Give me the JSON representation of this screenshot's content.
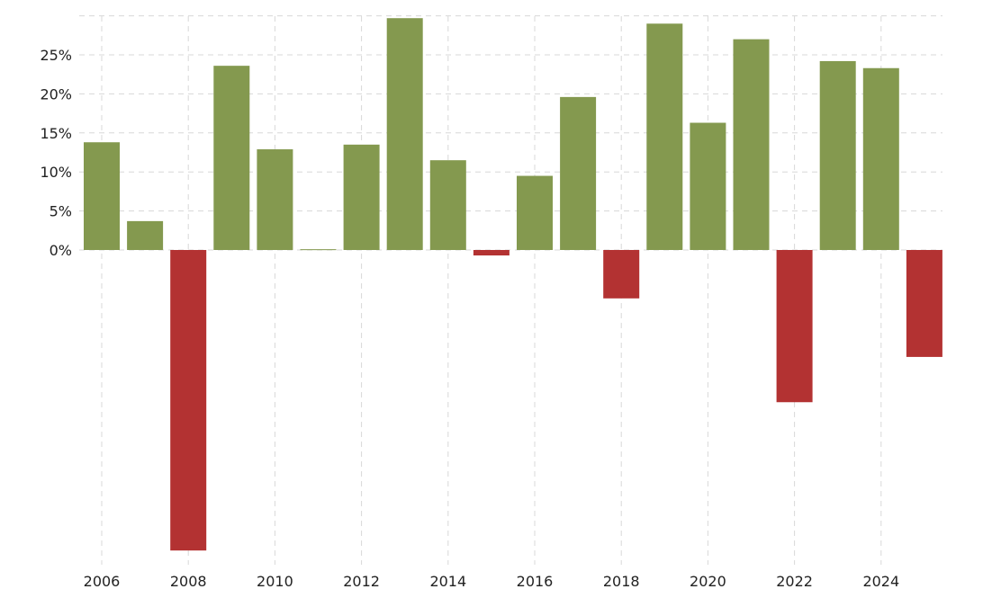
{
  "chart_data": {
    "type": "bar",
    "title": "",
    "xlabel": "",
    "ylabel": "",
    "categories": [
      "2006",
      "2007",
      "2008",
      "2009",
      "2010",
      "2011",
      "2012",
      "2013",
      "2014",
      "2015",
      "2016",
      "2017",
      "2018",
      "2019",
      "2020",
      "2021",
      "2022",
      "2023",
      "2024",
      "2025"
    ],
    "values": [
      13.8,
      3.7,
      -38.5,
      23.6,
      12.9,
      0.1,
      13.5,
      29.7,
      11.5,
      -0.7,
      9.5,
      19.6,
      -6.2,
      29.0,
      16.3,
      27.0,
      -19.5,
      24.2,
      23.3,
      -13.7
    ],
    "ylim": [
      -40,
      30
    ],
    "y_ticks": [
      "0%",
      "5%",
      "10%",
      "15%",
      "20%",
      "25%"
    ],
    "y_tick_values": [
      0,
      5,
      10,
      15,
      20,
      25
    ],
    "x_ticks": [
      "2006",
      "2008",
      "2010",
      "2012",
      "2014",
      "2016",
      "2018",
      "2020",
      "2022",
      "2024"
    ],
    "grid": true,
    "colors": {
      "positive": "#84994f",
      "negative": "#b33232"
    }
  }
}
